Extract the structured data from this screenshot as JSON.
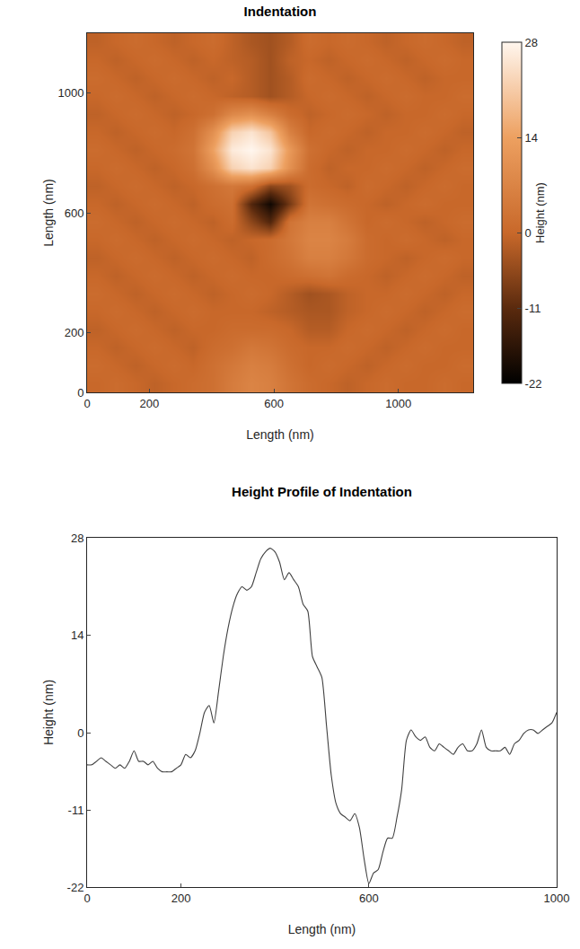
{
  "chart_data": [
    {
      "type": "heatmap",
      "title": "Indentation",
      "x_label": "Length (nm)",
      "y_label": "Length (nm)",
      "colorbar_label": "Height (nm)",
      "x": [
        31,
        93,
        155,
        217,
        279,
        341,
        403,
        465,
        527,
        589,
        651,
        713,
        775,
        837,
        899,
        961,
        1023,
        1085,
        1147,
        1209
      ],
      "y": [
        30,
        90,
        150,
        210,
        270,
        330,
        390,
        450,
        510,
        570,
        630,
        690,
        750,
        810,
        870,
        930,
        990,
        1050,
        1110,
        1170
      ],
      "z": [
        [
          0,
          1,
          0,
          -1,
          0,
          1,
          2,
          5,
          7,
          6,
          3,
          1,
          0,
          -1,
          0,
          1,
          0,
          0,
          1,
          0
        ],
        [
          1,
          0,
          -1,
          0,
          1,
          0,
          2,
          4,
          6,
          5,
          2,
          0,
          1,
          0,
          -1,
          0,
          1,
          0,
          0,
          1
        ],
        [
          0,
          -1,
          0,
          1,
          0,
          -1,
          1,
          2,
          4,
          3,
          1,
          0,
          0,
          1,
          0,
          -1,
          0,
          1,
          0,
          0
        ],
        [
          -1,
          0,
          1,
          0,
          -1,
          0,
          0,
          1,
          1,
          1,
          0,
          -2,
          -2,
          0,
          1,
          0,
          -1,
          0,
          1,
          0
        ],
        [
          0,
          1,
          0,
          -1,
          0,
          1,
          0,
          0,
          0,
          -1,
          -2,
          -3,
          -3,
          -1,
          0,
          1,
          0,
          -1,
          0,
          1
        ],
        [
          1,
          0,
          -1,
          0,
          1,
          0,
          -1,
          0,
          1,
          0,
          -2,
          -4,
          -3,
          -1,
          0,
          0,
          1,
          0,
          -1,
          0
        ],
        [
          0,
          -1,
          0,
          1,
          0,
          -1,
          0,
          1,
          0,
          0,
          1,
          2,
          3,
          1,
          0,
          -1,
          0,
          1,
          0,
          -1
        ],
        [
          -1,
          0,
          1,
          0,
          -1,
          0,
          1,
          0,
          -1,
          1,
          3,
          6,
          6,
          4,
          1,
          0,
          -1,
          0,
          1,
          0
        ],
        [
          0,
          1,
          0,
          -1,
          0,
          1,
          0,
          -1,
          0,
          1,
          4,
          7,
          7,
          5,
          1,
          0,
          1,
          0,
          -1,
          0
        ],
        [
          1,
          0,
          -1,
          0,
          1,
          0,
          -1,
          1,
          -6,
          -12,
          3,
          6,
          6,
          3,
          0,
          1,
          0,
          -1,
          0,
          1
        ],
        [
          0,
          -1,
          0,
          1,
          0,
          -1,
          1,
          2,
          -12,
          -20,
          -8,
          3,
          2,
          1,
          0,
          -1,
          0,
          1,
          0,
          0
        ],
        [
          -1,
          0,
          1,
          0,
          -1,
          0,
          2,
          4,
          2,
          -6,
          -4,
          1,
          0,
          -1,
          1,
          0,
          -1,
          0,
          1,
          0
        ],
        [
          0,
          1,
          0,
          -1,
          0,
          2,
          10,
          22,
          25,
          22,
          10,
          1,
          -1,
          0,
          0,
          1,
          0,
          -1,
          0,
          1
        ],
        [
          1,
          0,
          -1,
          0,
          1,
          3,
          14,
          26,
          28,
          25,
          12,
          2,
          0,
          -1,
          0,
          0,
          1,
          0,
          -1,
          0
        ],
        [
          0,
          -1,
          0,
          1,
          0,
          2,
          10,
          22,
          25,
          20,
          6,
          0,
          1,
          0,
          -1,
          0,
          0,
          1,
          0,
          -1
        ],
        [
          -1,
          0,
          1,
          0,
          -1,
          0,
          2,
          8,
          10,
          6,
          1,
          -1,
          0,
          1,
          0,
          -1,
          0,
          0,
          1,
          0
        ],
        [
          0,
          1,
          0,
          -1,
          0,
          1,
          0,
          -1,
          -2,
          -4,
          -2,
          0,
          1,
          0,
          -1,
          0,
          1,
          0,
          0,
          1
        ],
        [
          1,
          0,
          -1,
          0,
          1,
          0,
          -1,
          0,
          -2,
          -4,
          -2,
          1,
          0,
          -1,
          0,
          1,
          0,
          -1,
          0,
          0
        ],
        [
          0,
          -1,
          0,
          1,
          0,
          -1,
          0,
          -1,
          -2,
          -4,
          -1,
          0,
          -1,
          0,
          1,
          0,
          -1,
          0,
          1,
          0
        ],
        [
          -1,
          0,
          1,
          0,
          -1,
          0,
          1,
          -1,
          -3,
          -4,
          -2,
          1,
          0,
          1,
          0,
          -1,
          0,
          1,
          0,
          -1
        ]
      ],
      "xlim": [
        0,
        1240
      ],
      "ylim": [
        0,
        1200
      ],
      "xticks": [
        0,
        200,
        600,
        1000
      ],
      "yticks": [
        0,
        200,
        600,
        1000
      ],
      "zlim": [
        -22,
        28
      ],
      "zticks": [
        -22,
        -11,
        0,
        14,
        28
      ]
    },
    {
      "type": "line",
      "title": "Height Profile of Indentation",
      "x_label": "Length (nm)",
      "y_label": "Height (nm)",
      "color": "#404040",
      "x": [
        0,
        10,
        20,
        30,
        40,
        50,
        60,
        70,
        80,
        90,
        100,
        110,
        120,
        130,
        140,
        150,
        160,
        170,
        180,
        190,
        200,
        210,
        220,
        230,
        240,
        250,
        260,
        270,
        280,
        290,
        300,
        310,
        320,
        330,
        340,
        350,
        360,
        370,
        380,
        390,
        400,
        410,
        420,
        430,
        440,
        450,
        460,
        470,
        480,
        490,
        500,
        510,
        520,
        530,
        540,
        550,
        560,
        570,
        580,
        590,
        600,
        610,
        620,
        630,
        640,
        650,
        660,
        670,
        680,
        690,
        700,
        710,
        720,
        730,
        740,
        750,
        760,
        770,
        780,
        790,
        800,
        810,
        820,
        830,
        840,
        850,
        860,
        870,
        880,
        890,
        900,
        910,
        920,
        930,
        940,
        950,
        960,
        970,
        980,
        990,
        1000
      ],
      "values": [
        -4.5,
        -4.5,
        -4,
        -3.5,
        -4,
        -4.5,
        -5,
        -4.5,
        -5,
        -4,
        -2.5,
        -4,
        -4,
        -4.5,
        -4,
        -5,
        -5.5,
        -5.5,
        -5.5,
        -5,
        -4.5,
        -3,
        -3.5,
        -2.5,
        0,
        3,
        4,
        1.5,
        6,
        11,
        15,
        18,
        20,
        21,
        20.5,
        21,
        23,
        25,
        26,
        26.5,
        26,
        24.5,
        22,
        23,
        22,
        21,
        18.5,
        17.5,
        11,
        9.5,
        8,
        1,
        -6,
        -10,
        -11.5,
        -12,
        -12.5,
        -11.5,
        -13.5,
        -18,
        -21.5,
        -20,
        -19.5,
        -17,
        -15,
        -15,
        -12,
        -8,
        -1,
        0.5,
        -0.5,
        -1,
        -0.5,
        -2,
        -2.5,
        -1.5,
        -2,
        -2.5,
        -3,
        -2,
        -1.5,
        -2.5,
        -2.5,
        -1.5,
        0.5,
        -2,
        -2.5,
        -2.5,
        -2.5,
        -2,
        -3,
        -1.5,
        -1,
        0,
        0.5,
        0.5,
        0,
        0.5,
        1,
        1.5,
        3
      ],
      "xlim": [
        0,
        1000
      ],
      "ylim": [
        -22,
        28
      ],
      "xticks": [
        0,
        200,
        600,
        1000
      ],
      "yticks": [
        -22,
        -11,
        0,
        14,
        28
      ]
    }
  ]
}
